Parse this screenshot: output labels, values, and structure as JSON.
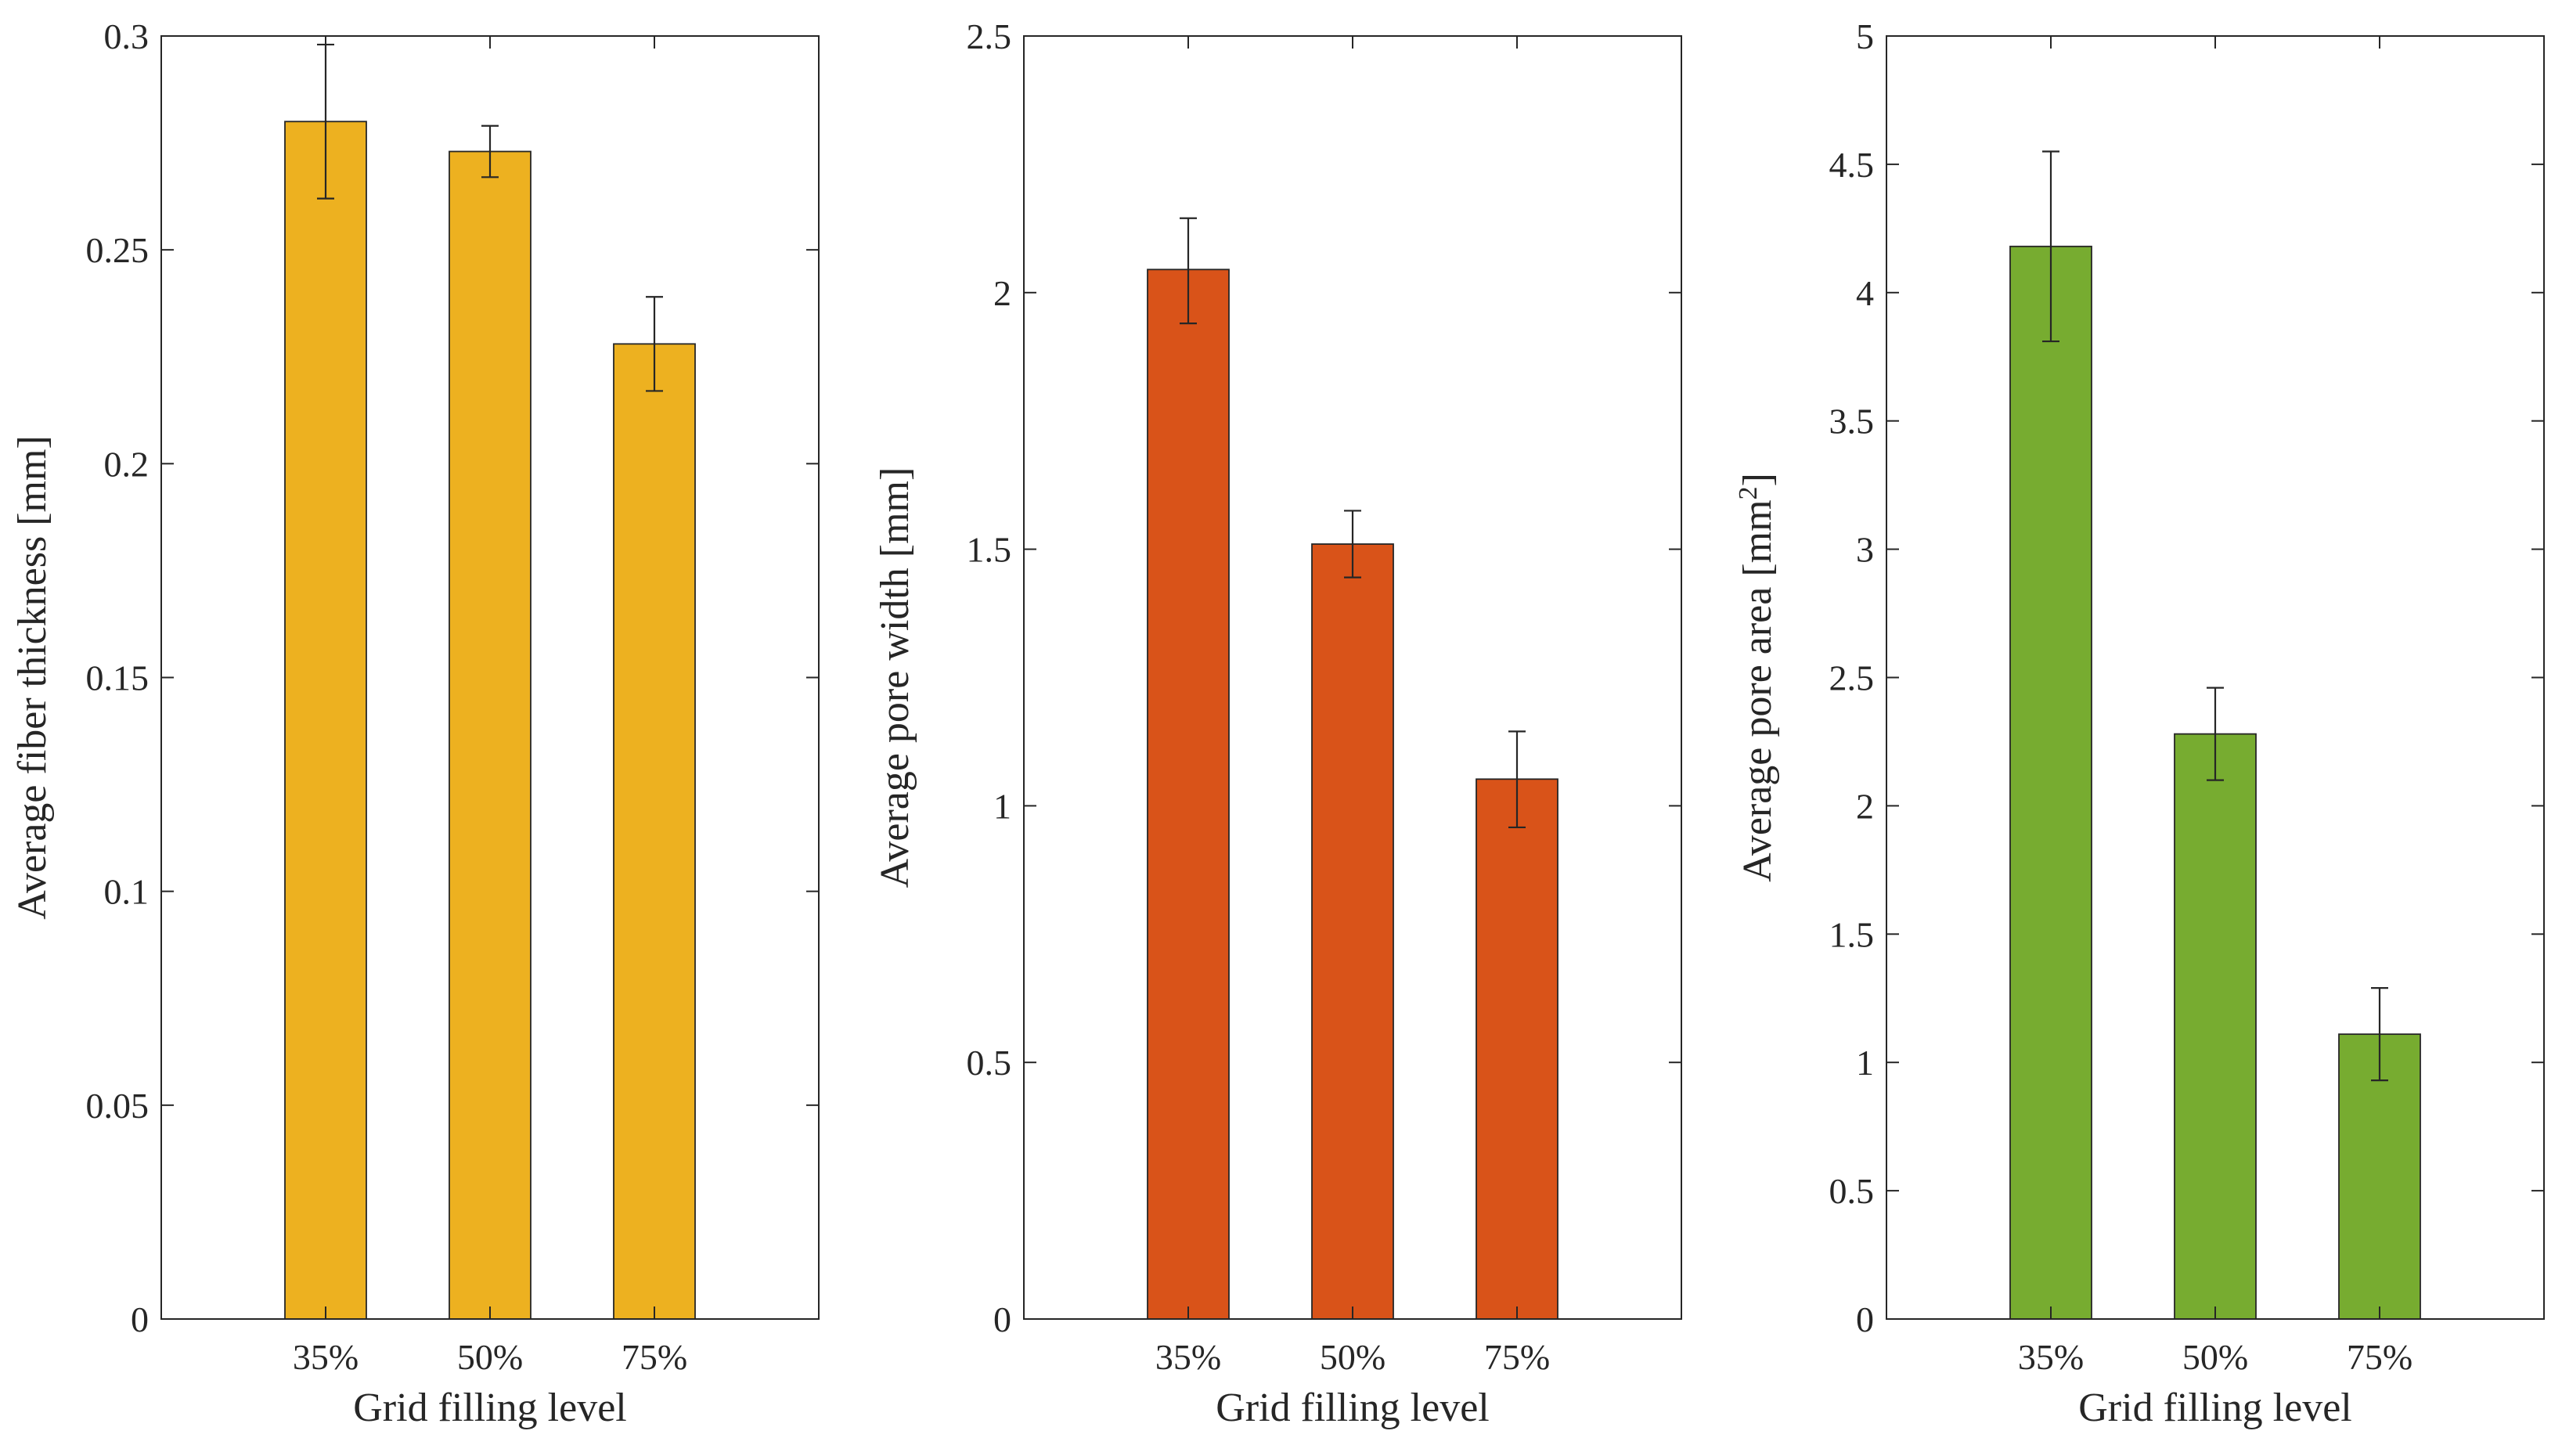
{
  "chart_data": [
    {
      "type": "bar",
      "categories": [
        "35%",
        "50%",
        "75%"
      ],
      "values": [
        0.28,
        0.273,
        0.228
      ],
      "error_low": [
        0.262,
        0.267,
        0.217
      ],
      "error_high": [
        0.298,
        0.279,
        0.239
      ],
      "xlabel": "Grid filling level",
      "ylabel": "Average fiber thickness [mm]",
      "ylim": [
        0,
        0.3
      ],
      "yticks": [
        0,
        0.05,
        0.1,
        0.15,
        0.2,
        0.25,
        0.3
      ],
      "ytick_labels": [
        "0",
        "0.05",
        "0.1",
        "0.15",
        "0.2",
        "0.25",
        "0.3"
      ],
      "color": "#EDB120",
      "grid": false
    },
    {
      "type": "bar",
      "categories": [
        "35%",
        "50%",
        "75%"
      ],
      "values": [
        2.045,
        1.51,
        1.052
      ],
      "error_low": [
        1.94,
        1.445,
        0.958
      ],
      "error_high": [
        2.145,
        1.575,
        1.145
      ],
      "xlabel": "Grid filling level",
      "ylabel": "Average pore width [mm]",
      "ylim": [
        0,
        2.5
      ],
      "yticks": [
        0,
        0.5,
        1,
        1.5,
        2,
        2.5
      ],
      "ytick_labels": [
        "0",
        "0.5",
        "1",
        "1.5",
        "2",
        "2.5"
      ],
      "color": "#D95319",
      "grid": false
    },
    {
      "type": "bar",
      "categories": [
        "35%",
        "50%",
        "75%"
      ],
      "values": [
        4.18,
        2.28,
        1.11
      ],
      "error_low": [
        3.81,
        2.1,
        0.93
      ],
      "error_high": [
        4.55,
        2.46,
        1.29
      ],
      "xlabel": "Grid filling level",
      "ylabel": "Average pore area [mm",
      "ylabel_superscript": "2",
      "ylabel_suffix": "]",
      "ylim": [
        0,
        5
      ],
      "yticks": [
        0,
        0.5,
        1,
        1.5,
        2,
        2.5,
        3,
        3.5,
        4,
        4.5,
        5
      ],
      "ytick_labels": [
        "0",
        "0.5",
        "1",
        "1.5",
        "2",
        "2.5",
        "3",
        "3.5",
        "4",
        "4.5",
        "5"
      ],
      "color": "#77AC30",
      "grid": false
    }
  ]
}
